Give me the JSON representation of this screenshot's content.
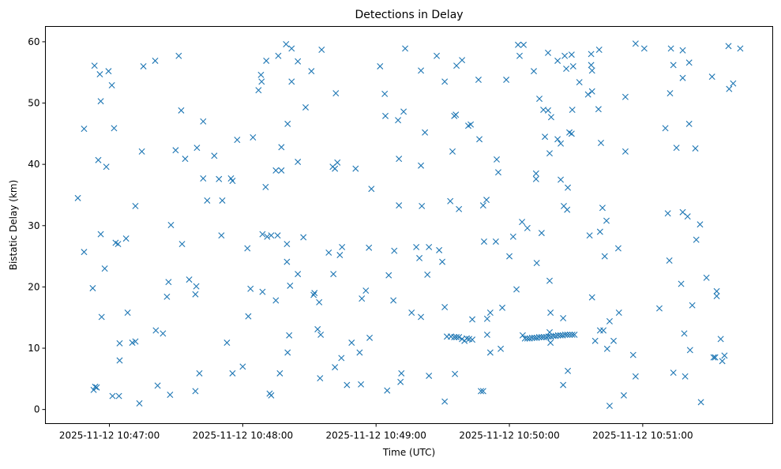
{
  "chart_data": {
    "type": "scatter",
    "title": "Detections in Delay",
    "xlabel": "Time (UTC)",
    "ylabel": "Bistatic Delay (km)",
    "x_units": "seconds after 2025-11-12 10:47:00",
    "xlim": [
      -28.8,
      298.5
    ],
    "ylim": [
      -2.3,
      62.5
    ],
    "grid": false,
    "marker": "x",
    "color": "#1f77b4",
    "xticks": [
      {
        "value": 0,
        "label": "2025-11-12 10:47:00"
      },
      {
        "value": 60,
        "label": "2025-11-12 10:48:00"
      },
      {
        "value": 120,
        "label": "2025-11-12 10:49:00"
      },
      {
        "value": 180,
        "label": "2025-11-12 10:50:00"
      },
      {
        "value": 240,
        "label": "2025-11-12 10:51:00"
      }
    ],
    "yticks": [
      {
        "value": 0,
        "label": "0"
      },
      {
        "value": 10,
        "label": "10"
      },
      {
        "value": 20,
        "label": "20"
      },
      {
        "value": 30,
        "label": "30"
      },
      {
        "value": 40,
        "label": "40"
      },
      {
        "value": 50,
        "label": "50"
      },
      {
        "value": 60,
        "label": "60"
      }
    ],
    "points": [
      [
        -14.2,
        34.5
      ],
      [
        -11.4,
        45.8
      ],
      [
        -11.4,
        25.7
      ],
      [
        -7.5,
        19.8
      ],
      [
        -6.7,
        56.1
      ],
      [
        -7.1,
        3.2
      ],
      [
        -6.4,
        3.7
      ],
      [
        -5.7,
        3.6
      ],
      [
        -5.0,
        40.7
      ],
      [
        -4.3,
        54.7
      ],
      [
        -3.9,
        50.3
      ],
      [
        -3.9,
        28.6
      ],
      [
        -3.5,
        15.1
      ],
      [
        -2.1,
        23.0
      ],
      [
        -1.4,
        39.6
      ],
      [
        -0.4,
        55.2
      ],
      [
        1.1,
        52.9
      ],
      [
        1.4,
        2.2
      ],
      [
        2.1,
        45.9
      ],
      [
        2.8,
        27.2
      ],
      [
        3.9,
        27.0
      ],
      [
        4.3,
        2.2
      ],
      [
        4.6,
        10.8
      ],
      [
        4.6,
        8.0
      ],
      [
        7.5,
        27.9
      ],
      [
        8.2,
        15.8
      ],
      [
        10.3,
        10.9
      ],
      [
        11.7,
        11.1
      ],
      [
        11.7,
        33.2
      ],
      [
        13.5,
        1.0
      ],
      [
        14.6,
        42.1
      ],
      [
        15.3,
        56.0
      ],
      [
        20.6,
        56.9
      ],
      [
        20.9,
        12.9
      ],
      [
        21.7,
        3.9
      ],
      [
        24.1,
        12.4
      ],
      [
        25.9,
        18.4
      ],
      [
        26.6,
        20.8
      ],
      [
        27.3,
        2.4
      ],
      [
        27.7,
        30.1
      ],
      [
        29.8,
        42.3
      ],
      [
        31.2,
        57.7
      ],
      [
        32.3,
        48.8
      ],
      [
        32.7,
        27.0
      ],
      [
        34.1,
        40.9
      ],
      [
        35.9,
        21.2
      ],
      [
        38.7,
        18.8
      ],
      [
        39.1,
        20.1
      ],
      [
        38.7,
        3.0
      ],
      [
        39.4,
        42.7
      ],
      [
        40.5,
        5.9
      ],
      [
        42.2,
        47.0
      ],
      [
        42.2,
        37.7
      ],
      [
        44.0,
        34.1
      ],
      [
        47.2,
        41.4
      ],
      [
        49.3,
        37.6
      ],
      [
        50.8,
        34.1
      ],
      [
        50.4,
        28.4
      ],
      [
        52.9,
        10.9
      ],
      [
        54.7,
        37.7
      ],
      [
        55.4,
        37.3
      ],
      [
        55.4,
        5.9
      ],
      [
        57.5,
        44.0
      ],
      [
        60.0,
        7.0
      ],
      [
        62.1,
        26.3
      ],
      [
        62.5,
        15.2
      ],
      [
        63.5,
        19.7
      ],
      [
        64.6,
        44.4
      ],
      [
        67.1,
        52.1
      ],
      [
        68.2,
        54.6
      ],
      [
        68.5,
        53.5
      ],
      [
        68.9,
        28.6
      ],
      [
        68.9,
        19.2
      ],
      [
        70.3,
        36.3
      ],
      [
        70.6,
        56.9
      ],
      [
        71.0,
        28.2
      ],
      [
        72.1,
        2.6
      ],
      [
        72.8,
        2.3
      ],
      [
        72.8,
        28.4
      ],
      [
        74.9,
        17.8
      ],
      [
        74.9,
        39.0
      ],
      [
        75.7,
        28.4
      ],
      [
        76.0,
        57.7
      ],
      [
        76.7,
        5.9
      ],
      [
        77.4,
        42.8
      ],
      [
        77.4,
        39.0
      ],
      [
        79.5,
        59.6
      ],
      [
        79.9,
        24.1
      ],
      [
        79.9,
        27.0
      ],
      [
        80.2,
        46.6
      ],
      [
        80.2,
        9.3
      ],
      [
        80.9,
        12.1
      ],
      [
        81.3,
        20.2
      ],
      [
        82.0,
        58.9
      ],
      [
        82.0,
        53.5
      ],
      [
        84.8,
        56.8
      ],
      [
        84.8,
        40.4
      ],
      [
        84.8,
        22.1
      ],
      [
        87.3,
        28.1
      ],
      [
        88.3,
        49.3
      ],
      [
        90.9,
        55.2
      ],
      [
        91.9,
        18.7
      ],
      [
        92.3,
        19.0
      ],
      [
        93.7,
        13.1
      ],
      [
        94.4,
        17.5
      ],
      [
        94.8,
        5.1
      ],
      [
        95.1,
        12.2
      ],
      [
        95.5,
        58.7
      ],
      [
        98.7,
        25.6
      ],
      [
        100.5,
        39.6
      ],
      [
        100.8,
        22.1
      ],
      [
        101.5,
        6.9
      ],
      [
        101.5,
        39.3
      ],
      [
        101.9,
        51.6
      ],
      [
        102.6,
        40.3
      ],
      [
        103.7,
        25.2
      ],
      [
        104.7,
        26.5
      ],
      [
        104.4,
        8.4
      ],
      [
        106.9,
        4.0
      ],
      [
        109.0,
        10.9
      ],
      [
        110.8,
        39.3
      ],
      [
        112.6,
        9.3
      ],
      [
        113.2,
        4.1
      ],
      [
        113.6,
        18.1
      ],
      [
        115.4,
        19.4
      ],
      [
        116.8,
        26.4
      ],
      [
        117.1,
        11.7
      ],
      [
        117.9,
        36.0
      ],
      [
        121.8,
        56.0
      ],
      [
        123.9,
        51.5
      ],
      [
        124.2,
        47.9
      ],
      [
        125.0,
        3.1
      ],
      [
        125.7,
        21.9
      ],
      [
        127.8,
        17.8
      ],
      [
        128.2,
        25.9
      ],
      [
        129.9,
        47.2
      ],
      [
        130.3,
        40.9
      ],
      [
        130.3,
        33.3
      ],
      [
        131.0,
        4.5
      ],
      [
        131.4,
        5.9
      ],
      [
        132.4,
        48.6
      ],
      [
        133.1,
        58.9
      ],
      [
        136.0,
        15.8
      ],
      [
        138.1,
        26.5
      ],
      [
        139.5,
        24.7
      ],
      [
        140.2,
        55.3
      ],
      [
        140.2,
        39.8
      ],
      [
        140.2,
        15.1
      ],
      [
        140.6,
        33.2
      ],
      [
        142.0,
        45.2
      ],
      [
        143.1,
        22.0
      ],
      [
        143.8,
        26.5
      ],
      [
        143.8,
        5.5
      ],
      [
        147.3,
        57.7
      ],
      [
        148.4,
        26.0
      ],
      [
        149.8,
        24.1
      ],
      [
        150.9,
        53.5
      ],
      [
        150.9,
        16.7
      ],
      [
        150.9,
        1.3
      ],
      [
        153.4,
        34.0
      ],
      [
        151.9,
        11.9
      ],
      [
        153.7,
        11.9
      ],
      [
        155.2,
        11.8
      ],
      [
        156.2,
        11.8
      ],
      [
        157.3,
        11.8
      ],
      [
        158.7,
        11.5
      ],
      [
        159.8,
        11.2
      ],
      [
        160.8,
        11.6
      ],
      [
        161.9,
        11.5
      ],
      [
        163.3,
        11.4
      ],
      [
        154.4,
        42.1
      ],
      [
        155.2,
        47.9
      ],
      [
        155.5,
        5.8
      ],
      [
        155.9,
        48.1
      ],
      [
        156.2,
        56.1
      ],
      [
        157.3,
        32.7
      ],
      [
        158.7,
        57.0
      ],
      [
        161.5,
        46.3
      ],
      [
        162.6,
        46.5
      ],
      [
        163.3,
        14.7
      ],
      [
        166.1,
        53.8
      ],
      [
        166.5,
        44.1
      ],
      [
        167.2,
        3.0
      ],
      [
        168.2,
        33.3
      ],
      [
        168.2,
        3.0
      ],
      [
        168.6,
        27.4
      ],
      [
        169.7,
        34.2
      ],
      [
        170.0,
        12.2
      ],
      [
        170.0,
        14.8
      ],
      [
        171.4,
        15.8
      ],
      [
        171.4,
        9.3
      ],
      [
        173.9,
        27.4
      ],
      [
        174.3,
        40.8
      ],
      [
        175.0,
        38.7
      ],
      [
        176.1,
        9.9
      ],
      [
        176.8,
        16.6
      ],
      [
        178.6,
        53.8
      ],
      [
        180.0,
        25.0
      ],
      [
        181.7,
        28.2
      ],
      [
        183.2,
        19.6
      ],
      [
        183.9,
        59.5
      ],
      [
        184.6,
        57.7
      ],
      [
        185.7,
        30.6
      ],
      [
        186.0,
        12.1
      ],
      [
        186.4,
        59.5
      ],
      [
        188.1,
        29.6
      ],
      [
        187.0,
        11.6
      ],
      [
        188.1,
        11.6
      ],
      [
        189.1,
        11.6
      ],
      [
        190.2,
        11.7
      ],
      [
        191.3,
        11.7
      ],
      [
        192.3,
        11.7
      ],
      [
        193.4,
        11.8
      ],
      [
        194.5,
        11.8
      ],
      [
        195.5,
        11.8
      ],
      [
        196.6,
        11.8
      ],
      [
        197.6,
        11.9
      ],
      [
        198.7,
        11.9
      ],
      [
        199.8,
        12.0
      ],
      [
        200.8,
        12.0
      ],
      [
        201.9,
        12.1
      ],
      [
        203.0,
        12.1
      ],
      [
        204.0,
        12.1
      ],
      [
        205.1,
        12.2
      ],
      [
        206.1,
        12.2
      ],
      [
        207.2,
        12.2
      ],
      [
        208.3,
        12.2
      ],
      [
        209.3,
        12.2
      ],
      [
        198.5,
        10.9
      ],
      [
        198.1,
        12.6
      ],
      [
        191.0,
        55.2
      ],
      [
        192.0,
        38.5
      ],
      [
        192.0,
        37.6
      ],
      [
        192.3,
        23.9
      ],
      [
        193.5,
        50.7
      ],
      [
        194.5,
        28.8
      ],
      [
        195.3,
        48.9
      ],
      [
        196.0,
        44.5
      ],
      [
        197.4,
        48.8
      ],
      [
        197.4,
        58.2
      ],
      [
        198.1,
        21.0
      ],
      [
        198.1,
        41.8
      ],
      [
        198.8,
        47.7
      ],
      [
        198.5,
        15.8
      ],
      [
        201.7,
        56.9
      ],
      [
        201.7,
        44.1
      ],
      [
        203.1,
        43.4
      ],
      [
        203.1,
        37.5
      ],
      [
        204.2,
        14.9
      ],
      [
        204.5,
        33.2
      ],
      [
        204.2,
        4.0
      ],
      [
        204.9,
        57.7
      ],
      [
        206.0,
        32.6
      ],
      [
        205.6,
        55.6
      ],
      [
        206.3,
        36.2
      ],
      [
        206.3,
        6.3
      ],
      [
        207.0,
        45.2
      ],
      [
        208.0,
        45.0
      ],
      [
        208.0,
        57.9
      ],
      [
        208.3,
        48.9
      ],
      [
        208.7,
        56.0
      ],
      [
        211.5,
        53.4
      ],
      [
        215.4,
        51.4
      ],
      [
        216.1,
        28.4
      ],
      [
        216.8,
        58.0
      ],
      [
        217.2,
        18.3
      ],
      [
        216.8,
        56.2
      ],
      [
        217.2,
        55.3
      ],
      [
        217.2,
        51.9
      ],
      [
        218.6,
        11.2
      ],
      [
        220.1,
        49.0
      ],
      [
        220.4,
        58.7
      ],
      [
        220.8,
        12.9
      ],
      [
        220.8,
        29.0
      ],
      [
        221.2,
        43.5
      ],
      [
        221.9,
        32.9
      ],
      [
        222.3,
        12.9
      ],
      [
        222.9,
        25.0
      ],
      [
        223.7,
        30.8
      ],
      [
        224.0,
        9.9
      ],
      [
        225.1,
        14.4
      ],
      [
        225.1,
        0.6
      ],
      [
        226.9,
        11.2
      ],
      [
        229.0,
        26.3
      ],
      [
        229.3,
        15.8
      ],
      [
        231.5,
        2.3
      ],
      [
        232.2,
        51.0
      ],
      [
        232.2,
        42.1
      ],
      [
        235.7,
        8.9
      ],
      [
        236.8,
        5.4
      ],
      [
        236.8,
        59.7
      ],
      [
        240.7,
        58.9
      ],
      [
        247.5,
        16.5
      ],
      [
        250.2,
        45.9
      ],
      [
        251.3,
        32.0
      ],
      [
        252.0,
        24.3
      ],
      [
        252.3,
        51.6
      ],
      [
        252.7,
        58.9
      ],
      [
        253.8,
        56.2
      ],
      [
        253.8,
        6.0
      ],
      [
        255.2,
        42.7
      ],
      [
        257.3,
        20.5
      ],
      [
        258.0,
        58.6
      ],
      [
        258.0,
        54.1
      ],
      [
        258.0,
        32.2
      ],
      [
        258.7,
        12.4
      ],
      [
        259.1,
        5.4
      ],
      [
        260.2,
        31.5
      ],
      [
        260.9,
        46.6
      ],
      [
        260.9,
        56.6
      ],
      [
        261.3,
        9.7
      ],
      [
        262.3,
        17.0
      ],
      [
        263.7,
        42.6
      ],
      [
        264.1,
        27.7
      ],
      [
        265.8,
        30.2
      ],
      [
        266.2,
        1.2
      ],
      [
        268.7,
        21.5
      ],
      [
        271.2,
        54.3
      ],
      [
        271.9,
        8.5
      ],
      [
        272.6,
        8.5
      ],
      [
        273.3,
        19.3
      ],
      [
        273.3,
        18.5
      ],
      [
        275.1,
        11.5
      ],
      [
        275.8,
        7.9
      ],
      [
        276.8,
        8.8
      ],
      [
        278.6,
        59.3
      ],
      [
        278.9,
        52.3
      ],
      [
        280.7,
        53.2
      ],
      [
        283.9,
        58.9
      ]
    ]
  }
}
